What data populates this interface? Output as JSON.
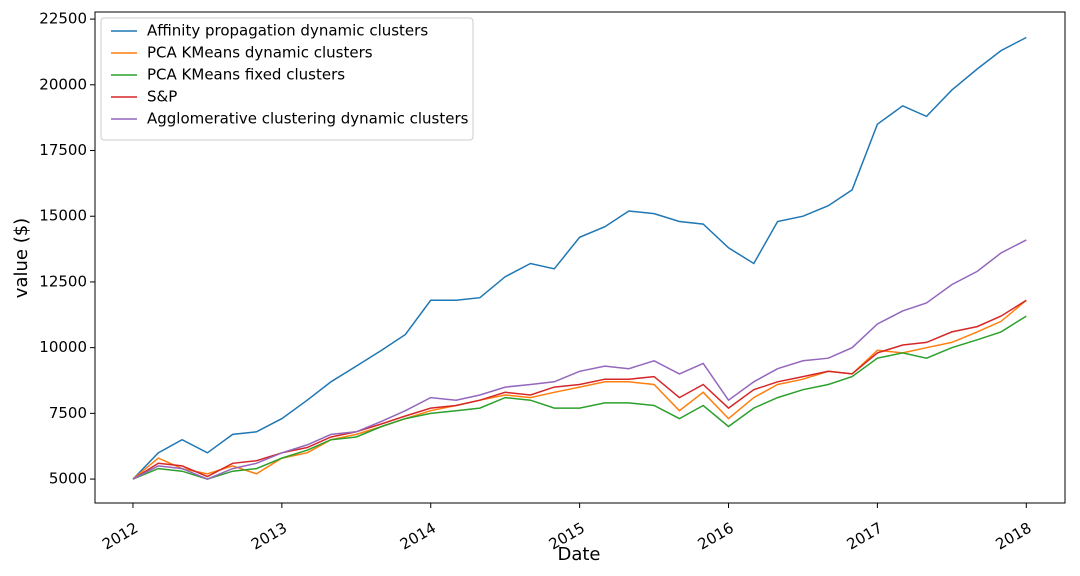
{
  "chart_data": {
    "type": "line",
    "x_label": "Date",
    "y_label": "value ($)",
    "x": [
      2012,
      2012.17,
      2012.33,
      2012.5,
      2012.67,
      2012.83,
      2013,
      2013.17,
      2013.33,
      2013.5,
      2013.67,
      2013.83,
      2014,
      2014.17,
      2014.33,
      2014.5,
      2014.67,
      2014.83,
      2015,
      2015.17,
      2015.33,
      2015.5,
      2015.67,
      2015.83,
      2016,
      2016.17,
      2016.33,
      2016.5,
      2016.67,
      2016.83,
      2017,
      2017.17,
      2017.33,
      2017.5,
      2017.67,
      2017.83,
      2018
    ],
    "series": [
      {
        "name": "Affinity propagation dynamic clusters",
        "color": "#1f77b4",
        "values": [
          5000,
          6000,
          6500,
          6000,
          6700,
          6800,
          7300,
          8000,
          8700,
          9300,
          9900,
          10500,
          11800,
          11800,
          11900,
          12700,
          13200,
          13000,
          14200,
          14600,
          15200,
          15100,
          14800,
          14700,
          13800,
          13200,
          14800,
          15000,
          15400,
          16000,
          18500,
          19200,
          18800,
          19800,
          20600,
          21300,
          21800
        ]
      },
      {
        "name": "PCA KMeans dynamic clusters",
        "color": "#ff7f0e",
        "values": [
          5000,
          5800,
          5400,
          5200,
          5500,
          5200,
          5800,
          6000,
          6500,
          6700,
          7000,
          7300,
          7600,
          7800,
          8000,
          8200,
          8100,
          8300,
          8500,
          8700,
          8700,
          8600,
          7600,
          8300,
          7300,
          8100,
          8600,
          8800,
          9100,
          9000,
          9900,
          9800,
          10000,
          10200,
          10600,
          11000,
          11800
        ]
      },
      {
        "name": "PCA KMeans fixed clusters",
        "color": "#2ca02c",
        "values": [
          5000,
          5400,
          5300,
          5000,
          5300,
          5400,
          5800,
          6100,
          6500,
          6600,
          7000,
          7300,
          7500,
          7600,
          7700,
          8100,
          8000,
          7700,
          7700,
          7900,
          7900,
          7800,
          7300,
          7800,
          7000,
          7700,
          8100,
          8400,
          8600,
          8900,
          9600,
          9800,
          9600,
          10000,
          10300,
          10600,
          11200
        ]
      },
      {
        "name": "S&P",
        "color": "#d62728",
        "values": [
          5000,
          5600,
          5500,
          5100,
          5600,
          5700,
          6000,
          6200,
          6600,
          6800,
          7100,
          7400,
          7700,
          7800,
          8000,
          8300,
          8200,
          8500,
          8600,
          8800,
          8800,
          8900,
          8100,
          8600,
          7700,
          8400,
          8700,
          8900,
          9100,
          9000,
          9800,
          10100,
          10200,
          10600,
          10800,
          11200,
          11800
        ]
      },
      {
        "name": "Agglomerative clustering dynamic clusters",
        "color": "#9467bd",
        "values": [
          5000,
          5500,
          5400,
          5000,
          5400,
          5600,
          6000,
          6300,
          6700,
          6800,
          7200,
          7600,
          8100,
          8000,
          8200,
          8500,
          8600,
          8700,
          9100,
          9300,
          9200,
          9500,
          9000,
          9400,
          8000,
          8700,
          9200,
          9500,
          9600,
          10000,
          10900,
          11400,
          11700,
          12400,
          12900,
          13600,
          14100
        ]
      }
    ],
    "xlim": [
      2011.745,
      2018.26
    ],
    "xticks": [
      2012,
      2013,
      2014,
      2015,
      2016,
      2017,
      2018
    ],
    "ylim": [
      4090,
      22770
    ],
    "yticks": [
      5000,
      7500,
      10000,
      12500,
      15000,
      17500,
      20000,
      22500
    ],
    "grid": false,
    "legend": "upper-left"
  }
}
